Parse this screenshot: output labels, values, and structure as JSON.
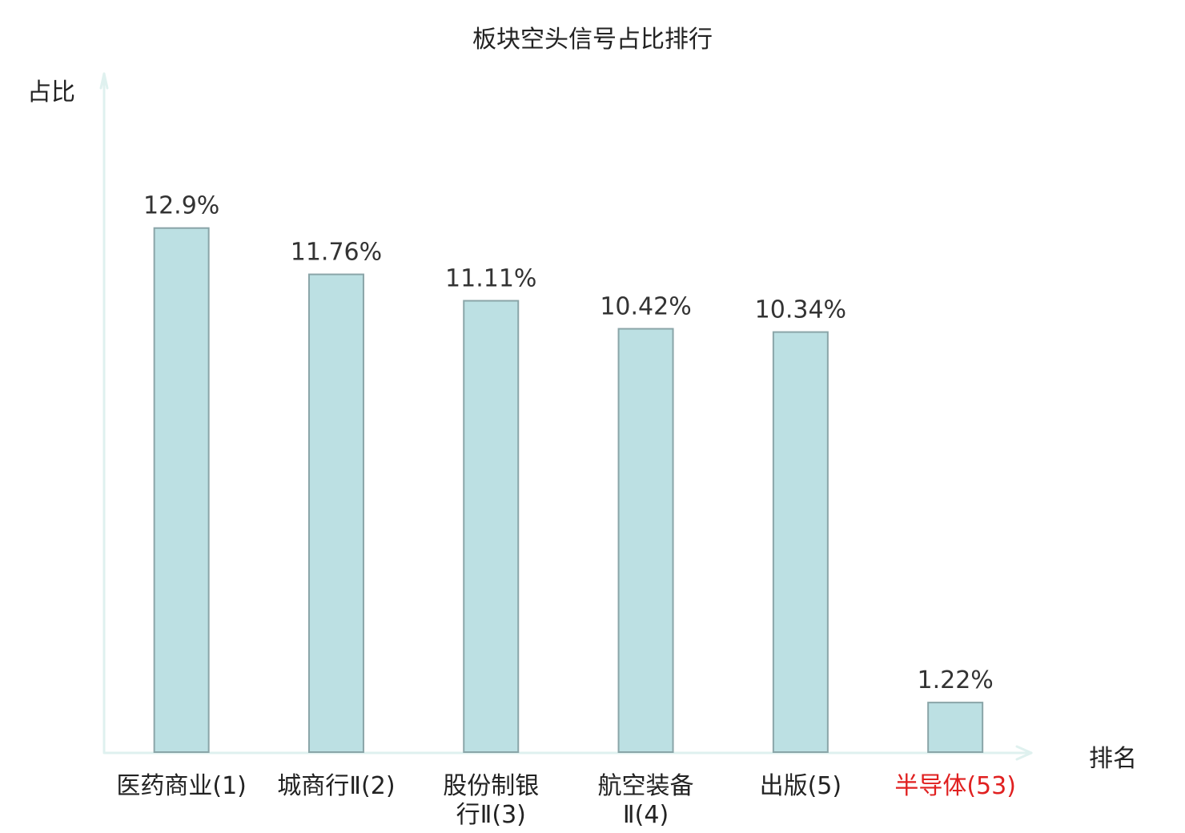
{
  "chart_data": {
    "type": "bar",
    "title": "板块空头信号占比排行",
    "ylabel": "占比",
    "xlabel": "排名",
    "categories": [
      "医药商业(1)",
      "城商行Ⅱ(2)",
      "股份制银行Ⅱ(3)",
      "航空装备Ⅱ(4)",
      "出版(5)",
      "半导体(53)"
    ],
    "category_lines": [
      [
        "医药商业(1)"
      ],
      [
        "城商行Ⅱ(2)"
      ],
      [
        "股份制银",
        "行Ⅱ(3)"
      ],
      [
        "航空装备",
        "Ⅱ(4)"
      ],
      [
        "出版(5)"
      ],
      [
        "半导体(53)"
      ]
    ],
    "values": [
      12.9,
      11.76,
      11.11,
      10.42,
      10.34,
      1.22
    ],
    "value_labels": [
      "12.9%",
      "11.76%",
      "11.11%",
      "10.42%",
      "10.34%",
      "1.22%"
    ],
    "highlight_index": 5,
    "ylim": [
      0,
      16.7
    ],
    "grid": false,
    "legend": "none"
  },
  "colors": {
    "bar_fill": "#bce0e3",
    "bar_stroke": "#8aa5a8",
    "axis": "#dff1ef",
    "text": "#222222",
    "highlight": "#e02020"
  }
}
